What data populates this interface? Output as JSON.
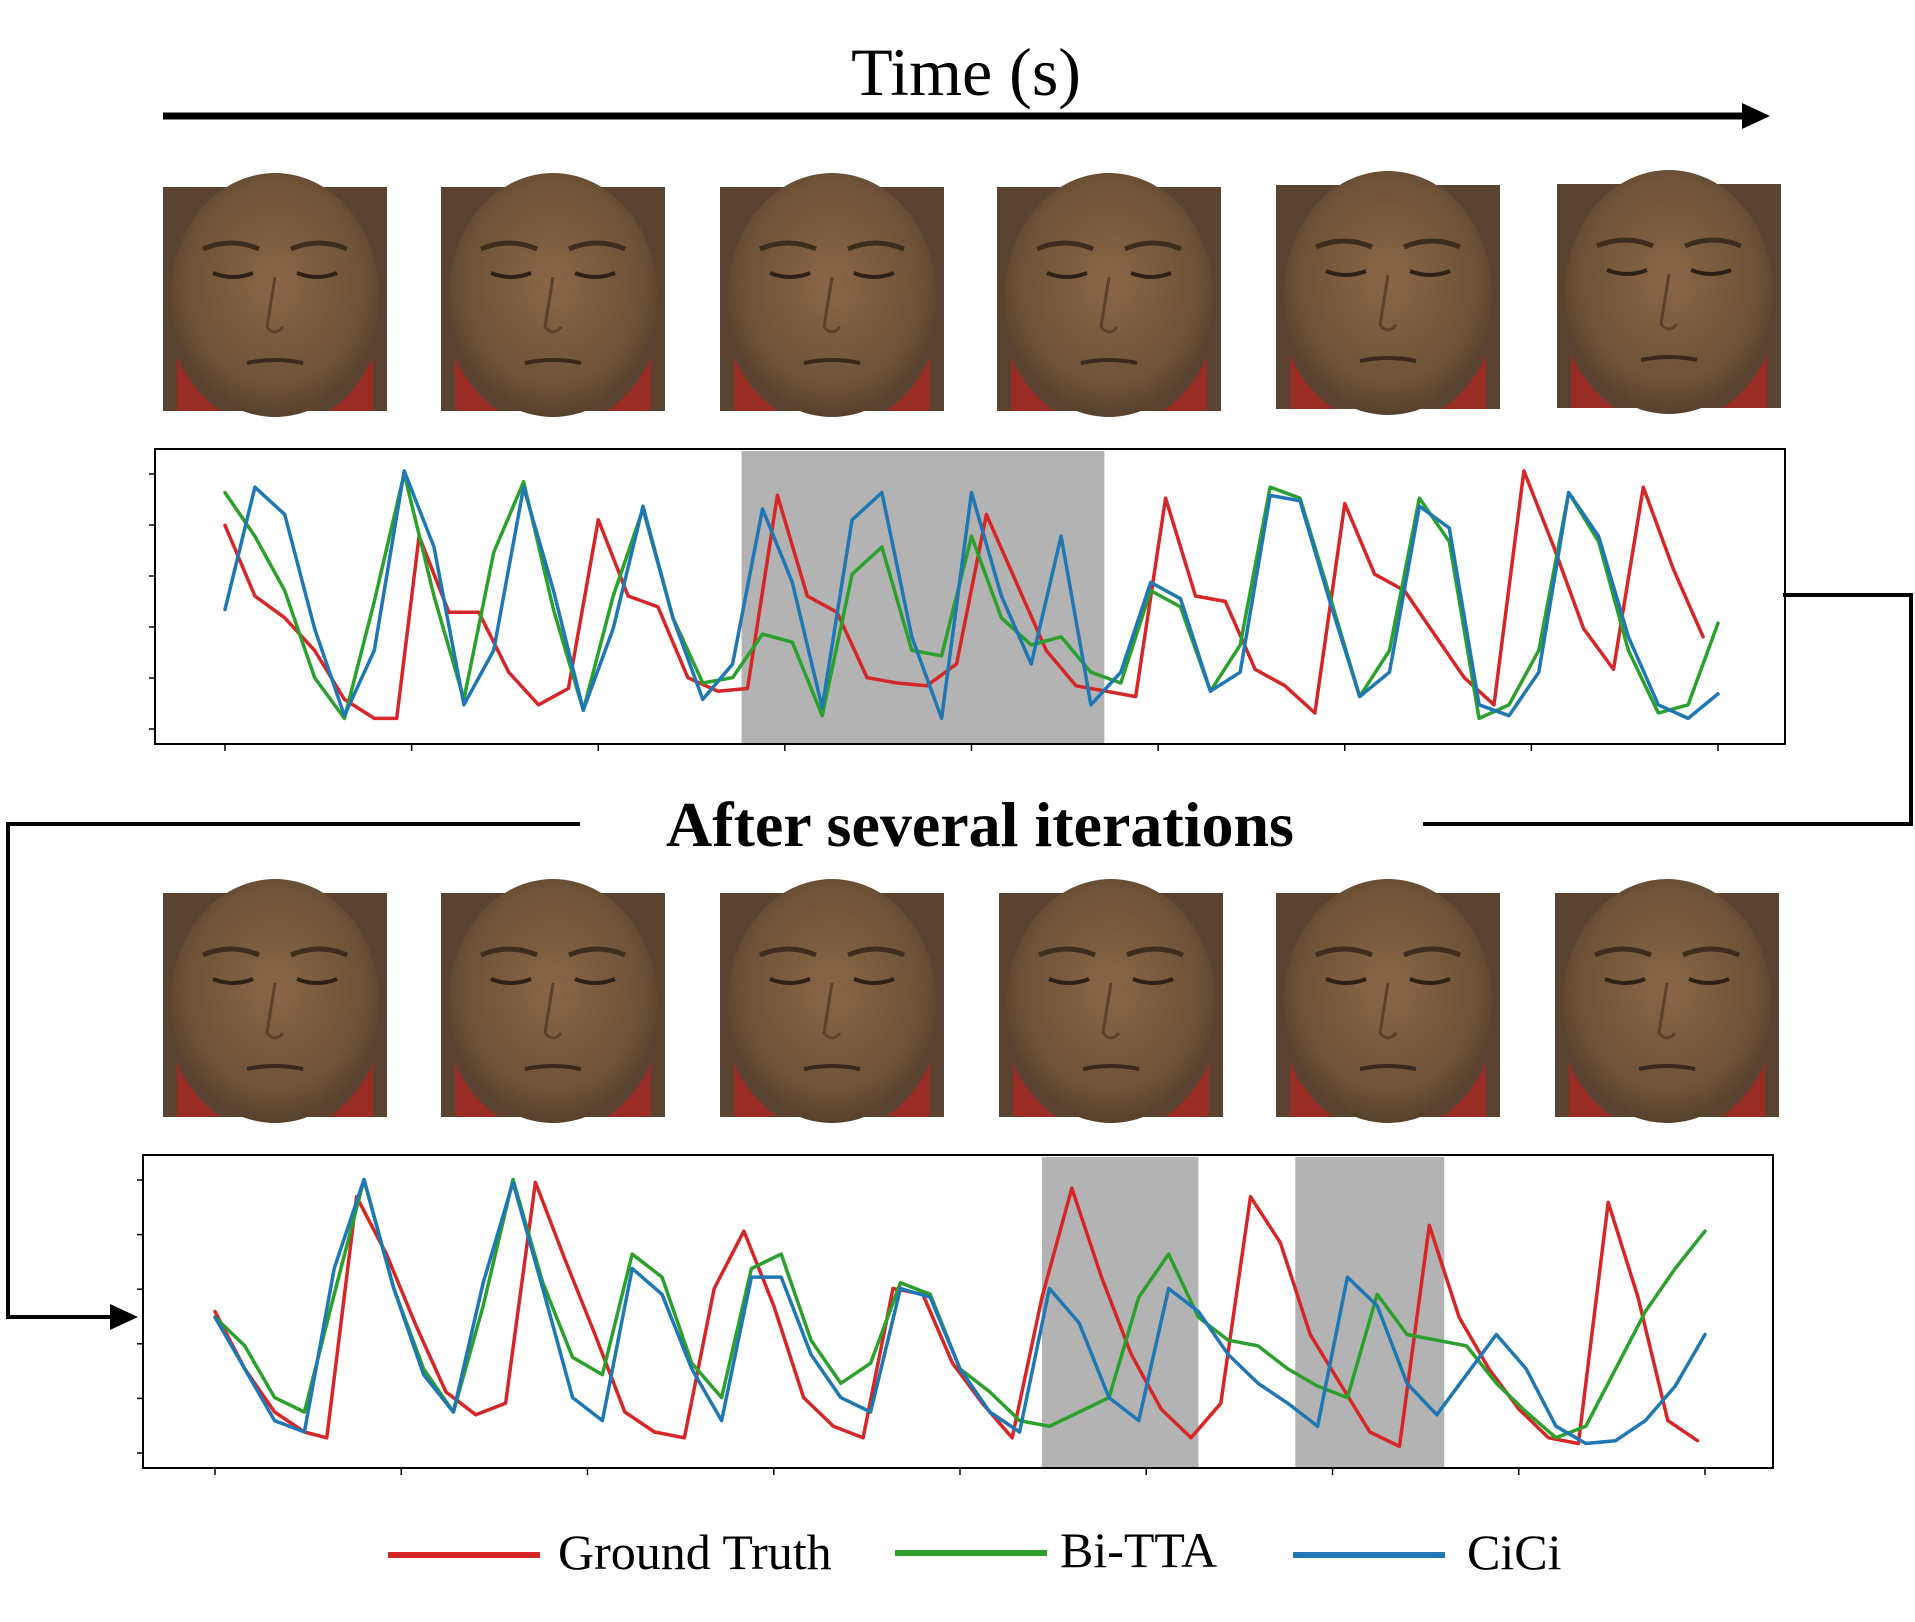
{
  "header": {
    "time_label": "Time (s)"
  },
  "middle": {
    "label": "After several iterations"
  },
  "legend": [
    {
      "label": "Ground Truth",
      "color": "#d62728"
    },
    {
      "label": "Bi-TTA",
      "color": "#2ca02c"
    },
    {
      "label": "CiCi",
      "color": "#1f77b4"
    }
  ],
  "colors": {
    "highlight": "#b3b3b3",
    "axis": "#000000"
  },
  "images": {
    "description": "video frames of a face",
    "top_row_count": 6,
    "bottom_row_count": 6
  },
  "chart_data": [
    {
      "type": "line",
      "title": "",
      "xlabel": "",
      "ylabel": "",
      "xlim": [
        0,
        100
      ],
      "ylim": [
        0,
        1
      ],
      "grid": false,
      "x_tick_count": 9,
      "highlighted_ranges": [
        [
          34.6,
          58.9
        ]
      ],
      "series": [
        {
          "name": "Ground Truth",
          "x": [
            0,
            2,
            4,
            6,
            8,
            10,
            11.5,
            13,
            15,
            17,
            19,
            21,
            23,
            25,
            27,
            29,
            31,
            33,
            35,
            37,
            39,
            41,
            43,
            45,
            47,
            49,
            51,
            53,
            55,
            57,
            59,
            61,
            63,
            65,
            67,
            69,
            71,
            73,
            75,
            77,
            79,
            81,
            83,
            85,
            87,
            89,
            91,
            93,
            95,
            97,
            99
          ],
          "y": [
            0.76,
            0.5,
            0.42,
            0.3,
            0.12,
            0.05,
            0.05,
            0.72,
            0.44,
            0.44,
            0.22,
            0.1,
            0.16,
            0.78,
            0.5,
            0.46,
            0.2,
            0.15,
            0.16,
            0.87,
            0.5,
            0.44,
            0.2,
            0.18,
            0.17,
            0.25,
            0.8,
            0.55,
            0.3,
            0.17,
            0.15,
            0.13,
            0.86,
            0.5,
            0.48,
            0.23,
            0.17,
            0.07,
            0.84,
            0.58,
            0.52,
            0.36,
            0.2,
            0.1,
            0.96,
            0.68,
            0.38,
            0.23,
            0.9,
            0.6,
            0.35
          ]
        },
        {
          "name": "Bi-TTA",
          "x": [
            0,
            2,
            4,
            6,
            8,
            10,
            12,
            14,
            16,
            18,
            20,
            22,
            24,
            26,
            28,
            30,
            32,
            34,
            36,
            38,
            40,
            42,
            44,
            46,
            48,
            50,
            52,
            54,
            56,
            58,
            60,
            62,
            64,
            66,
            68,
            70,
            72,
            74,
            76,
            78,
            80,
            82,
            84,
            86,
            88,
            90,
            92,
            94,
            96,
            98,
            100
          ],
          "y": [
            0.88,
            0.72,
            0.52,
            0.2,
            0.05,
            0.48,
            0.95,
            0.5,
            0.12,
            0.66,
            0.92,
            0.45,
            0.08,
            0.5,
            0.82,
            0.42,
            0.18,
            0.2,
            0.36,
            0.33,
            0.06,
            0.58,
            0.68,
            0.3,
            0.28,
            0.72,
            0.42,
            0.32,
            0.35,
            0.22,
            0.18,
            0.52,
            0.46,
            0.15,
            0.32,
            0.9,
            0.86,
            0.5,
            0.13,
            0.3,
            0.86,
            0.7,
            0.05,
            0.1,
            0.3,
            0.88,
            0.7,
            0.3,
            0.07,
            0.1,
            0.4
          ]
        },
        {
          "name": "CiCi",
          "x": [
            0,
            2,
            4,
            6,
            8,
            10,
            12,
            14,
            16,
            18,
            20,
            22,
            24,
            26,
            28,
            30,
            32,
            34,
            36,
            38,
            40,
            42,
            44,
            46,
            48,
            50,
            52,
            54,
            56,
            58,
            60,
            62,
            64,
            66,
            68,
            70,
            72,
            74,
            76,
            78,
            80,
            82,
            84,
            86,
            88,
            90,
            92,
            94,
            96,
            98,
            100
          ],
          "y": [
            0.45,
            0.9,
            0.8,
            0.38,
            0.06,
            0.3,
            0.96,
            0.68,
            0.1,
            0.3,
            0.9,
            0.52,
            0.08,
            0.38,
            0.83,
            0.42,
            0.12,
            0.25,
            0.82,
            0.55,
            0.09,
            0.78,
            0.88,
            0.35,
            0.05,
            0.88,
            0.5,
            0.25,
            0.72,
            0.1,
            0.22,
            0.55,
            0.49,
            0.15,
            0.22,
            0.87,
            0.85,
            0.48,
            0.13,
            0.22,
            0.83,
            0.75,
            0.1,
            0.06,
            0.22,
            0.88,
            0.72,
            0.35,
            0.1,
            0.05,
            0.14
          ]
        }
      ]
    },
    {
      "type": "line",
      "title": "",
      "xlabel": "",
      "ylabel": "",
      "xlim": [
        0,
        100
      ],
      "ylim": [
        0,
        1
      ],
      "grid": false,
      "x_tick_count": 9,
      "highlighted_ranges": [
        [
          55.5,
          66.0
        ],
        [
          72.5,
          82.5
        ]
      ],
      "series": [
        {
          "name": "Ground Truth",
          "x": [
            0,
            2,
            4,
            6,
            7.5,
            9.5,
            11.5,
            13.5,
            15.5,
            17.5,
            19.5,
            21.5,
            23.5,
            25.5,
            27.5,
            29.5,
            31.5,
            33.5,
            35.5,
            37.5,
            39.5,
            41.5,
            43.5,
            45.5,
            47.5,
            49.5,
            51.5,
            53.5,
            55.5,
            57.5,
            59.5,
            61.5,
            63.5,
            65.5,
            67.5,
            69.5,
            71.5,
            73.5,
            75.5,
            77.5,
            79.5,
            81.5,
            83.5,
            85.5,
            87.5,
            89.5,
            91.5,
            93.5,
            95.5,
            97.5,
            99.5
          ],
          "y": [
            0.5,
            0.3,
            0.15,
            0.08,
            0.06,
            0.9,
            0.7,
            0.45,
            0.22,
            0.14,
            0.18,
            0.95,
            0.68,
            0.42,
            0.15,
            0.08,
            0.06,
            0.58,
            0.78,
            0.52,
            0.2,
            0.1,
            0.06,
            0.58,
            0.56,
            0.32,
            0.18,
            0.06,
            0.55,
            0.93,
            0.62,
            0.35,
            0.16,
            0.06,
            0.18,
            0.9,
            0.74,
            0.42,
            0.25,
            0.08,
            0.03,
            0.8,
            0.48,
            0.3,
            0.16,
            0.06,
            0.04,
            0.88,
            0.55,
            0.12,
            0.05
          ]
        },
        {
          "name": "Bi-TTA",
          "x": [
            0,
            2,
            4,
            6,
            8,
            10,
            12,
            14,
            16,
            18,
            20,
            22,
            24,
            26,
            28,
            30,
            32,
            34,
            36,
            38,
            40,
            42,
            44,
            46,
            48,
            50,
            52,
            54,
            56,
            58,
            60,
            62,
            64,
            66,
            68,
            70,
            72,
            74,
            76,
            78,
            80,
            82,
            84,
            86,
            88,
            90,
            92,
            94,
            96,
            98,
            100
          ],
          "y": [
            0.48,
            0.38,
            0.2,
            0.15,
            0.56,
            0.96,
            0.58,
            0.3,
            0.15,
            0.52,
            0.96,
            0.6,
            0.34,
            0.28,
            0.7,
            0.62,
            0.32,
            0.2,
            0.65,
            0.7,
            0.4,
            0.25,
            0.32,
            0.6,
            0.56,
            0.3,
            0.22,
            0.12,
            0.1,
            0.15,
            0.2,
            0.55,
            0.7,
            0.48,
            0.4,
            0.38,
            0.3,
            0.24,
            0.2,
            0.56,
            0.42,
            0.4,
            0.38,
            0.25,
            0.15,
            0.06,
            0.1,
            0.3,
            0.5,
            0.65,
            0.78
          ]
        },
        {
          "name": "CiCi",
          "x": [
            0,
            2,
            4,
            6,
            8,
            10,
            12,
            14,
            16,
            18,
            20,
            22,
            24,
            26,
            28,
            30,
            32,
            34,
            36,
            38,
            40,
            42,
            44,
            46,
            48,
            50,
            52,
            54,
            56,
            58,
            60,
            62,
            64,
            66,
            68,
            70,
            72,
            74,
            76,
            78,
            80,
            82,
            84,
            86,
            88,
            90,
            92,
            94,
            96,
            98,
            100
          ],
          "y": [
            0.48,
            0.3,
            0.12,
            0.08,
            0.65,
            0.96,
            0.58,
            0.28,
            0.15,
            0.6,
            0.95,
            0.58,
            0.2,
            0.12,
            0.65,
            0.56,
            0.3,
            0.12,
            0.62,
            0.62,
            0.35,
            0.2,
            0.15,
            0.58,
            0.55,
            0.3,
            0.15,
            0.08,
            0.58,
            0.46,
            0.2,
            0.12,
            0.58,
            0.5,
            0.35,
            0.25,
            0.18,
            0.1,
            0.62,
            0.52,
            0.25,
            0.14,
            0.28,
            0.42,
            0.3,
            0.1,
            0.04,
            0.05,
            0.12,
            0.24,
            0.42
          ]
        }
      ]
    }
  ]
}
